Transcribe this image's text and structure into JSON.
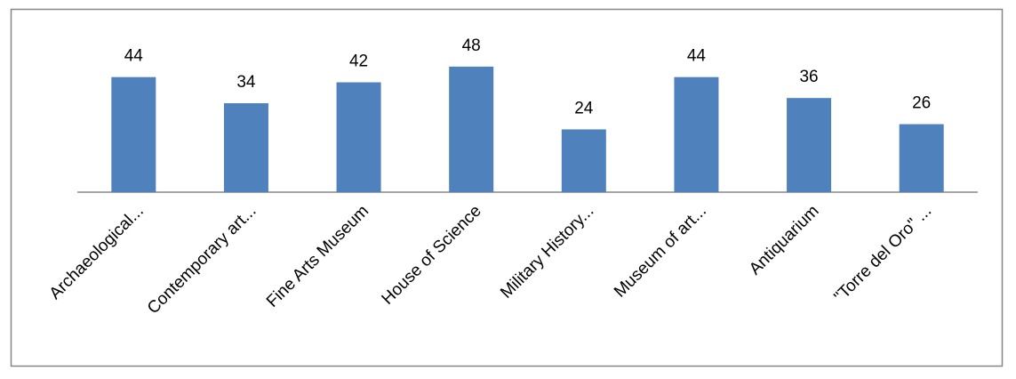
{
  "chart_data": {
    "type": "bar",
    "categories": [
      "Archaeological...",
      "Contemporary art...",
      "Fine Arts Museum",
      "House of Science",
      "Military History...",
      "Museum of art...",
      "Antiquarium",
      "\"Torre del Oro\" ..."
    ],
    "values": [
      44,
      34,
      42,
      48,
      24,
      44,
      36,
      26
    ],
    "color": "#4f81bd"
  }
}
